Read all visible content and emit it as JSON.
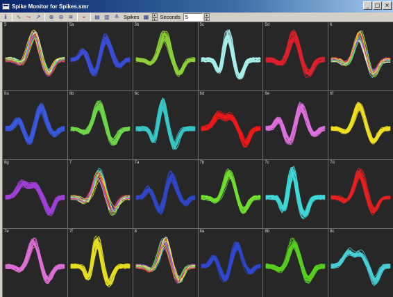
{
  "window": {
    "title": "Spike Monitor for Spikes.smr",
    "minimize_glyph": "_",
    "maximize_glyph": "□",
    "close_glyph": "×"
  },
  "toolbar": {
    "spikes_label": "Spikes",
    "seconds_label": "Seconds",
    "seconds_value": "5"
  },
  "channels": [
    {
      "label": "5",
      "color": "multi",
      "wave": "a"
    },
    {
      "label": "5a",
      "color": "#3a4fd8",
      "wave": "b"
    },
    {
      "label": "5b",
      "color": "#8ed23a",
      "wave": "a"
    },
    {
      "label": "5c",
      "color": "#a8f0ec",
      "wave": "c"
    },
    {
      "label": "5d",
      "color": "#e0202a",
      "wave": "a"
    },
    {
      "label": "6",
      "color": "multi",
      "wave": "a"
    },
    {
      "label": "6a",
      "color": "#3a5ae0",
      "wave": "b"
    },
    {
      "label": "6b",
      "color": "#6ed848",
      "wave": "a"
    },
    {
      "label": "6c",
      "color": "#38c8c8",
      "wave": "c"
    },
    {
      "label": "6d",
      "color": "#f01818",
      "wave": "d"
    },
    {
      "label": "6e",
      "color": "#e070e0",
      "wave": "b"
    },
    {
      "label": "6f",
      "color": "#f0e020",
      "wave": "a"
    },
    {
      "label": "6g",
      "color": "#a040d8",
      "wave": "d"
    },
    {
      "label": "7",
      "color": "multi",
      "wave": "a"
    },
    {
      "label": "7a",
      "color": "#3048c8",
      "wave": "b"
    },
    {
      "label": "7b",
      "color": "#70e030",
      "wave": "a"
    },
    {
      "label": "7c",
      "color": "#40d8d8",
      "wave": "c"
    },
    {
      "label": "7d",
      "color": "#e82020",
      "wave": "a"
    },
    {
      "label": "7e",
      "color": "#e070d8",
      "wave": "a"
    },
    {
      "label": "7f",
      "color": "#e8e020",
      "wave": "c"
    },
    {
      "label": "8",
      "color": "multi",
      "wave": "a"
    },
    {
      "label": "8a",
      "color": "#3048d0",
      "wave": "b"
    },
    {
      "label": "8b",
      "color": "#58d020",
      "wave": "a"
    },
    {
      "label": "8c",
      "color": "#48d0d8",
      "wave": "d"
    }
  ]
}
